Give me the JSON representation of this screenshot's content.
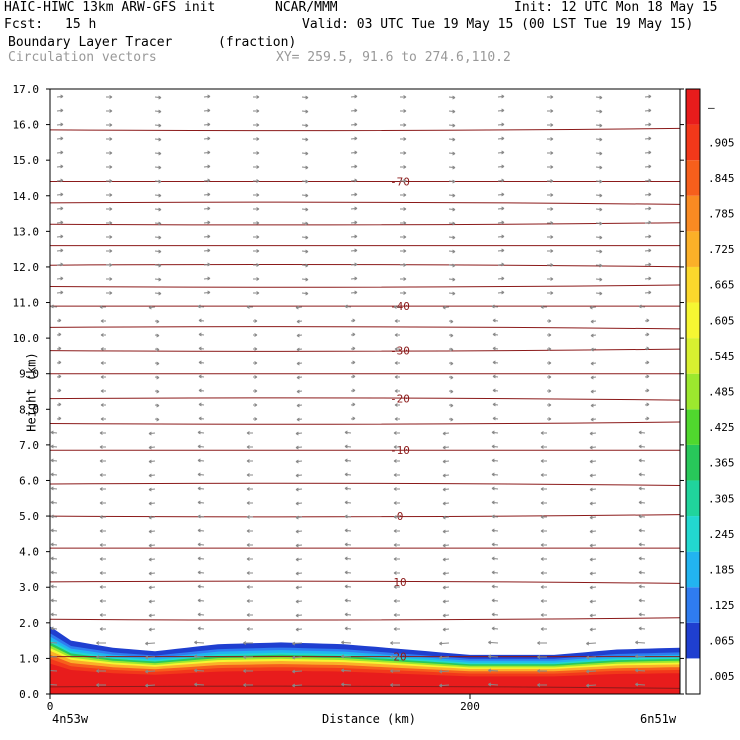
{
  "header": {
    "title": "HAIC-HIWC 13km ARW-GFS init",
    "org": "NCAR/MMM",
    "init": "Init: 12 UTC Mon 18 May 15",
    "fcst_label": "Fcst:",
    "fcst_value": "15 h",
    "valid": "Valid: 03 UTC Tue 19 May 15 (00 LST Tue 19 May 15)",
    "field1_name": "Boundary Layer Tracer",
    "field1_units": "(fraction)",
    "field2_name": "Circulation vectors",
    "xy": "XY= 259.5, 91.6 to 274.6,110.2"
  },
  "colors": {
    "temperature_contour": "#8b1a1a",
    "vector": "#888888",
    "text_gray": "#999999"
  },
  "chart_data": {
    "type": "heatmap",
    "title": "Boundary Layer Tracer (fraction)",
    "xlabel": "Distance (km)",
    "ylabel": "Height (km)",
    "xlim": [
      0,
      300
    ],
    "ylim": [
      0,
      17
    ],
    "x_ticks": [
      0,
      200
    ],
    "x_endpoint_labels": [
      "4n53w",
      "6n51w"
    ],
    "y_ticks": [
      "0.0",
      "1.0",
      "2.0",
      "3.0",
      "4.0",
      "5.0",
      "6.0",
      "7.0",
      "8.0",
      "9.0",
      "10.0",
      "11.0",
      "12.0",
      "13.0",
      "14.0",
      "15.0",
      "16.0",
      "17.0"
    ],
    "colorbar_labels": [
      ".005",
      ".065",
      ".125",
      ".185",
      ".245",
      ".305",
      ".365",
      ".425",
      ".485",
      ".545",
      ".605",
      ".665",
      ".725",
      ".785",
      ".845",
      ".905",
      "–"
    ],
    "colorbar_colors": [
      "#ffffff",
      "#1f3fd0",
      "#2f7cf0",
      "#22b4f0",
      "#22d8d0",
      "#20d49c",
      "#28c85a",
      "#50d82e",
      "#9ce82e",
      "#d8f030",
      "#f6f632",
      "#fbd82c",
      "#fbb028",
      "#f98a22",
      "#f65f1c",
      "#f2381a",
      "#e81c1c"
    ],
    "temperature_contours": [
      {
        "y": 0.2,
        "label": ""
      },
      {
        "y": 1.05,
        "label": "20"
      },
      {
        "y": 2.1,
        "label": ""
      },
      {
        "y": 3.15,
        "label": "10"
      },
      {
        "y": 4.1,
        "label": ""
      },
      {
        "y": 5.0,
        "label": "0"
      },
      {
        "y": 5.9,
        "label": ""
      },
      {
        "y": 6.85,
        "label": "-10"
      },
      {
        "y": 7.6,
        "label": ""
      },
      {
        "y": 8.3,
        "label": "-20"
      },
      {
        "y": 9.0,
        "label": ""
      },
      {
        "y": 9.65,
        "label": "-30"
      },
      {
        "y": 10.3,
        "label": ""
      },
      {
        "y": 10.9,
        "label": "-40"
      },
      {
        "y": 11.45,
        "label": ""
      },
      {
        "y": 12.05,
        "label": ""
      },
      {
        "y": 12.6,
        "label": ""
      },
      {
        "y": 13.2,
        "label": ""
      },
      {
        "y": 13.8,
        "label": ""
      },
      {
        "y": 14.4,
        "label": "-70"
      },
      {
        "y": 15.85,
        "label": ""
      }
    ],
    "boundary_layer_top": [
      {
        "x": 0,
        "h": 1.9
      },
      {
        "x": 10,
        "h": 1.5
      },
      {
        "x": 30,
        "h": 1.3
      },
      {
        "x": 50,
        "h": 1.2
      },
      {
        "x": 80,
        "h": 1.4
      },
      {
        "x": 110,
        "h": 1.45
      },
      {
        "x": 140,
        "h": 1.4
      },
      {
        "x": 170,
        "h": 1.25
      },
      {
        "x": 200,
        "h": 1.1
      },
      {
        "x": 240,
        "h": 1.1
      },
      {
        "x": 270,
        "h": 1.25
      },
      {
        "x": 300,
        "h": 1.3
      }
    ]
  }
}
